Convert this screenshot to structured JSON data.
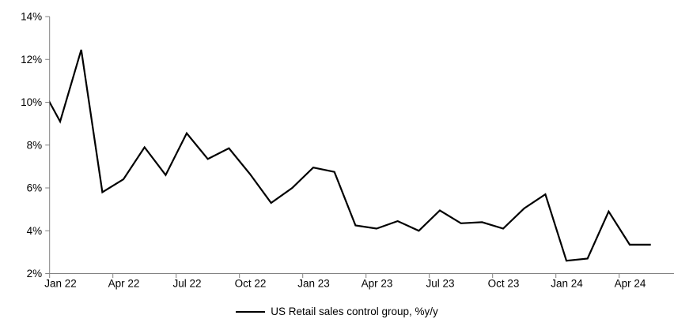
{
  "chart_data": {
    "type": "line",
    "title": "",
    "xlabel": "",
    "ylabel": "",
    "x": [
      "Dec 21",
      "Jan 22",
      "Feb 22",
      "Mar 22",
      "Apr 22",
      "May 22",
      "Jun 22",
      "Jul 22",
      "Aug 22",
      "Sep 22",
      "Oct 22",
      "Nov 22",
      "Dec 22",
      "Jan 23",
      "Feb 23",
      "Mar 23",
      "Apr 23",
      "May 23",
      "Jun 23",
      "Jul 23",
      "Aug 23",
      "Sep 23",
      "Oct 23",
      "Nov 23",
      "Dec 23",
      "Jan 24",
      "Feb 24",
      "Mar 24",
      "Apr 24",
      "May 24"
    ],
    "series": [
      {
        "name": "US Retail sales control group, %y/y",
        "values": [
          10.9,
          9.1,
          12.45,
          5.8,
          6.4,
          7.9,
          6.6,
          8.55,
          7.35,
          7.85,
          6.65,
          5.3,
          6.0,
          6.95,
          6.75,
          4.25,
          4.1,
          4.45,
          4.0,
          4.95,
          4.35,
          4.4,
          4.1,
          5.05,
          5.7,
          2.6,
          2.7,
          4.9,
          3.35,
          3.35
        ]
      }
    ],
    "ylim": [
      2,
      14
    ],
    "y_tick_step": 2,
    "y_tick_labels": [
      "2%",
      "4%",
      "6%",
      "8%",
      "10%",
      "12%",
      "14%"
    ],
    "x_tick_labels": [
      "Jan 22",
      "Apr 22",
      "Jul 22",
      "Oct 22",
      "Jan 23",
      "Apr 23",
      "Jul 23",
      "Oct 23",
      "Jan 24",
      "Apr 24"
    ],
    "x_tick_every_months": 3,
    "grid": false,
    "legend_position": "bottom",
    "note_first_point_clipped_at_axis": true
  },
  "legend": {
    "label": "US Retail sales control group, %y/y"
  },
  "colors": {
    "line": "#000000",
    "axis": "#808080",
    "text": "#000000",
    "background": "#ffffff"
  }
}
